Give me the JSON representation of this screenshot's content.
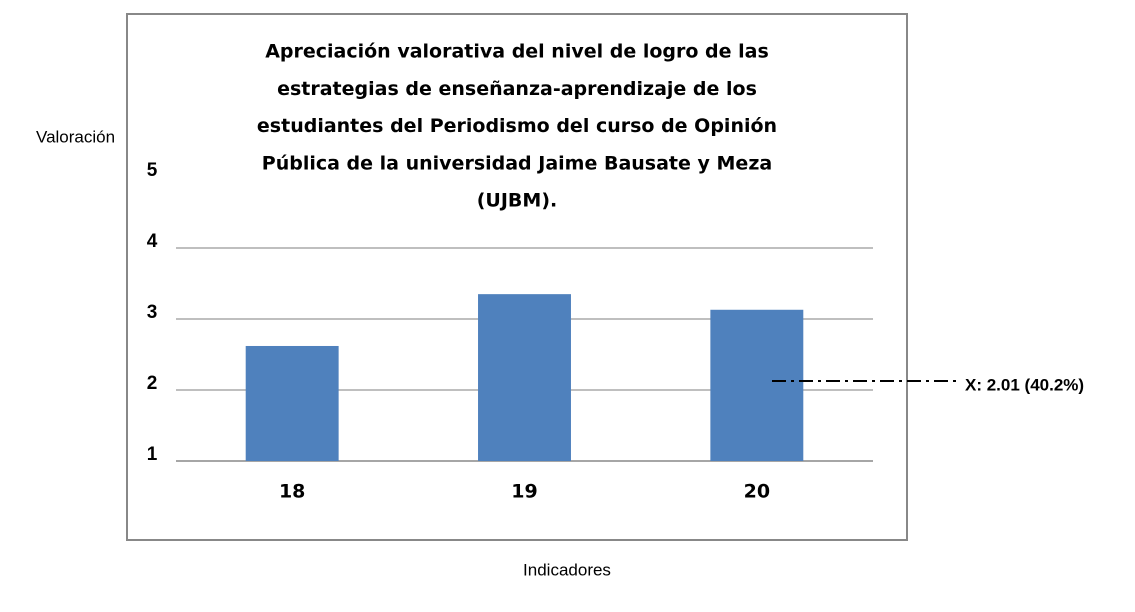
{
  "chart_data": {
    "type": "bar",
    "title": [
      "Apreciación valorativa del nivel de logro de las",
      "estrategias de enseñanza-aprendizaje de los",
      "estudiantes del Periodismo  del curso de Opinión",
      "Pública de la universidad Jaime Bausate y Meza",
      "(UJBM)."
    ],
    "y_label": "Valoración",
    "x_label": "Indicadores",
    "categories": [
      "18",
      "19",
      "20"
    ],
    "values": [
      2.62,
      3.35,
      3.13
    ],
    "color": "#4f81bd",
    "ylim": [
      1,
      5
    ],
    "yticks": [
      1,
      2,
      3,
      4,
      5
    ],
    "grid": true,
    "annotation": "X: 2.01 (40.2%)"
  }
}
